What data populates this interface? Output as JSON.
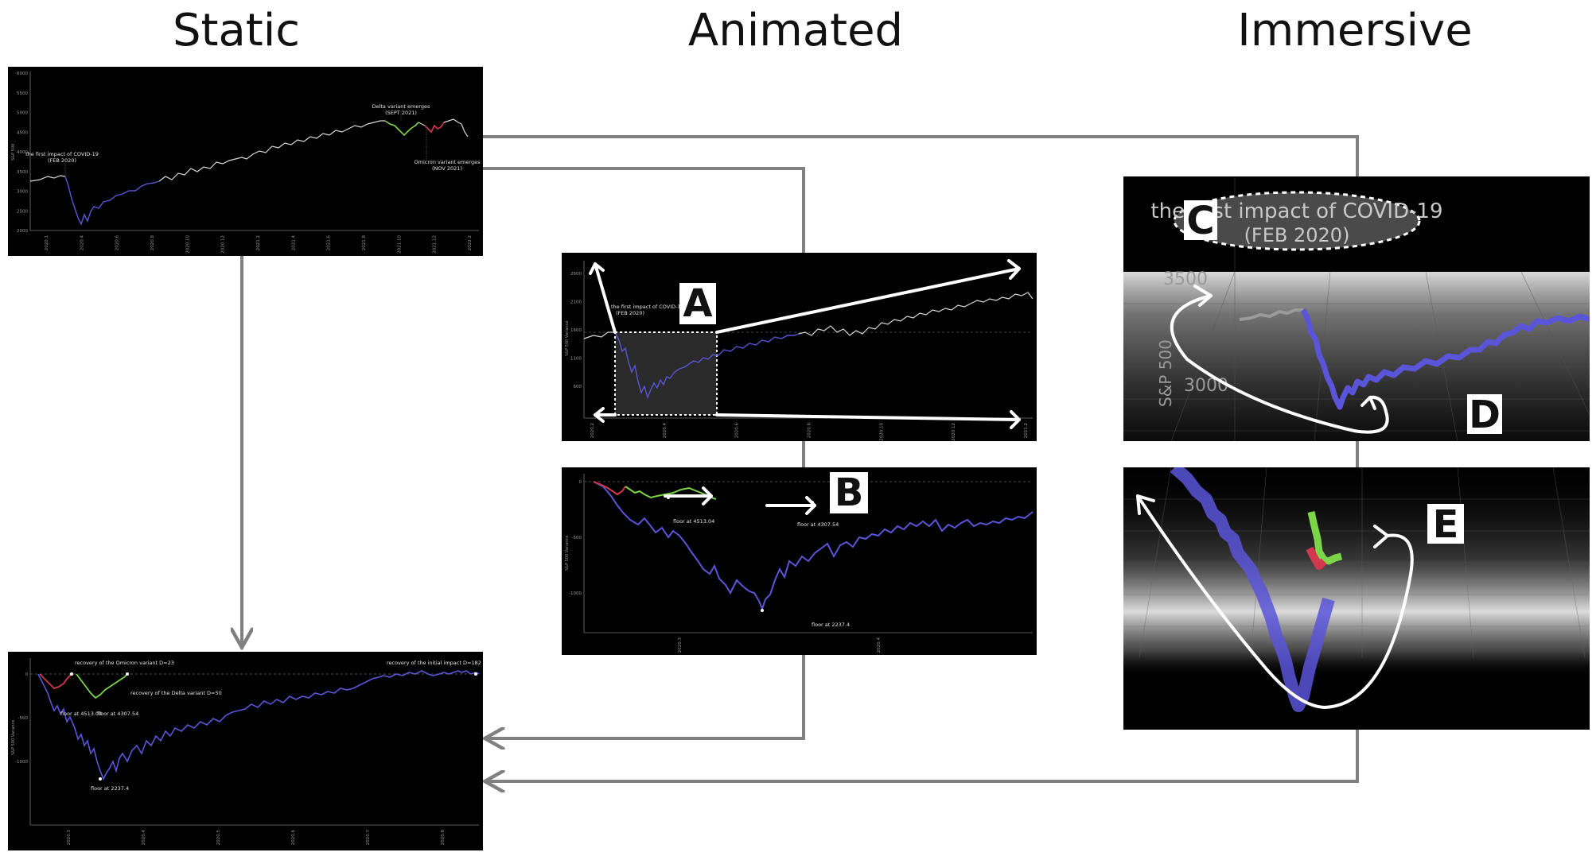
{
  "columns": {
    "static": "Static",
    "animated": "Animated",
    "immersive": "Immersive"
  },
  "labels": {
    "a": "A",
    "b": "B",
    "c": "C",
    "d": "D",
    "e": "E"
  },
  "static_top": {
    "y_ticks": [
      "6000",
      "5500",
      "5000",
      "4500",
      "4000",
      "3500",
      "3000",
      "2500",
      "2000"
    ],
    "y_label": "S&P 500",
    "x_ticks": [
      "2020.1",
      "2020.4",
      "2020.6",
      "2020.8",
      "2020.10",
      "2020.12",
      "2021.2",
      "2021.4",
      "2021.6",
      "2021.8",
      "2021.10",
      "2021.12",
      "2022.2"
    ],
    "ann_covid": [
      "the first impact of COVID-19",
      "(FEB 2020)"
    ],
    "ann_delta": [
      "Delta variant emerges",
      "(SEPT 2021)"
    ],
    "ann_omicron": [
      "Omicron variant emerges",
      "(NOV 2021)"
    ]
  },
  "static_bottom": {
    "y_ticks": [
      "0",
      "-500",
      "-1000"
    ],
    "y_label": "S&P 500 Variance",
    "x_ticks": [
      "2020.3",
      "2020.4",
      "2020.5",
      "2020.6",
      "2020.7",
      "2020.8"
    ],
    "ann_omicron_recovery": "recovery of the Omicron variant D=23",
    "ann_initial_recovery": "recovery of the initial impact D=182",
    "ann_delta_recovery": "recovery of the Delta variant D=50",
    "ann_floor1": "floor at 4513.04",
    "ann_floor2": "floor at 4307.54",
    "ann_floor3": "floor at 2237.4"
  },
  "animated_top": {
    "y_ticks": [
      "2600",
      "2100",
      "1600",
      "1100",
      "600"
    ],
    "y_label": "S&P 500 Variance",
    "x_ticks": [
      "2020.2",
      "2020.4",
      "2020.6",
      "2020.8",
      "2020.10",
      "2020.12",
      "2021.2"
    ],
    "ann_covid": [
      "the first impact of COVID-19",
      "(FEB 2020)"
    ]
  },
  "animated_bottom": {
    "y_ticks": [
      "0",
      "-500",
      "-1000"
    ],
    "y_label": "S&P 500 Variance",
    "x_ticks": [
      "2020.3",
      "2020.4"
    ],
    "ann_floor1": "floor at 4513.04",
    "ann_floor2": "floor at 4307.54",
    "ann_floor3": "floor at 2237.4"
  },
  "immersive_top": {
    "cloud": [
      "the first impact of COVID-19",
      "(FEB 2020)"
    ],
    "y_ticks": [
      "3500",
      "3000"
    ],
    "y_label": "S&P 500"
  },
  "colors": {
    "impact": "#5a55d8",
    "delta": "#7cd447",
    "omicron": "#d3384f",
    "neutral": "#d8d8d8",
    "connector": "#808080"
  }
}
